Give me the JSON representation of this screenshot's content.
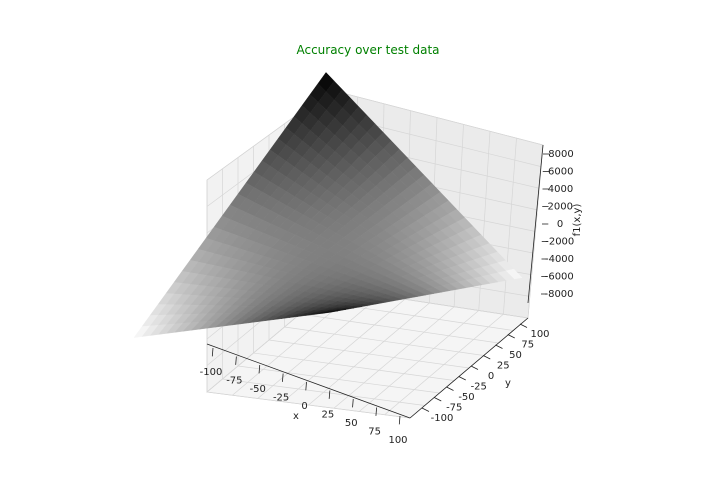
{
  "chart_data": {
    "type": "surface3d",
    "title": "Accuracy over test data",
    "title_color": "#008000",
    "xlabel": "x",
    "ylabel": "y",
    "zlabel": "f1(x,y)",
    "xlim": [
      -100,
      100
    ],
    "ylim": [
      -100,
      100
    ],
    "zlim": [
      -8000,
      8000
    ],
    "x_ticks": [
      "-100",
      "-75",
      "-50",
      "-25",
      "0",
      "25",
      "50",
      "75",
      "100"
    ],
    "y_ticks": [
      "-100",
      "-75",
      "-50",
      "-25",
      "0",
      "25",
      "50",
      "75",
      "100"
    ],
    "z_ticks": [
      "-8000",
      "-6000",
      "-4000",
      "-2000",
      "0",
      "2000",
      "4000",
      "6000",
      "8000"
    ],
    "grid": true,
    "colormap": "gray"
  }
}
